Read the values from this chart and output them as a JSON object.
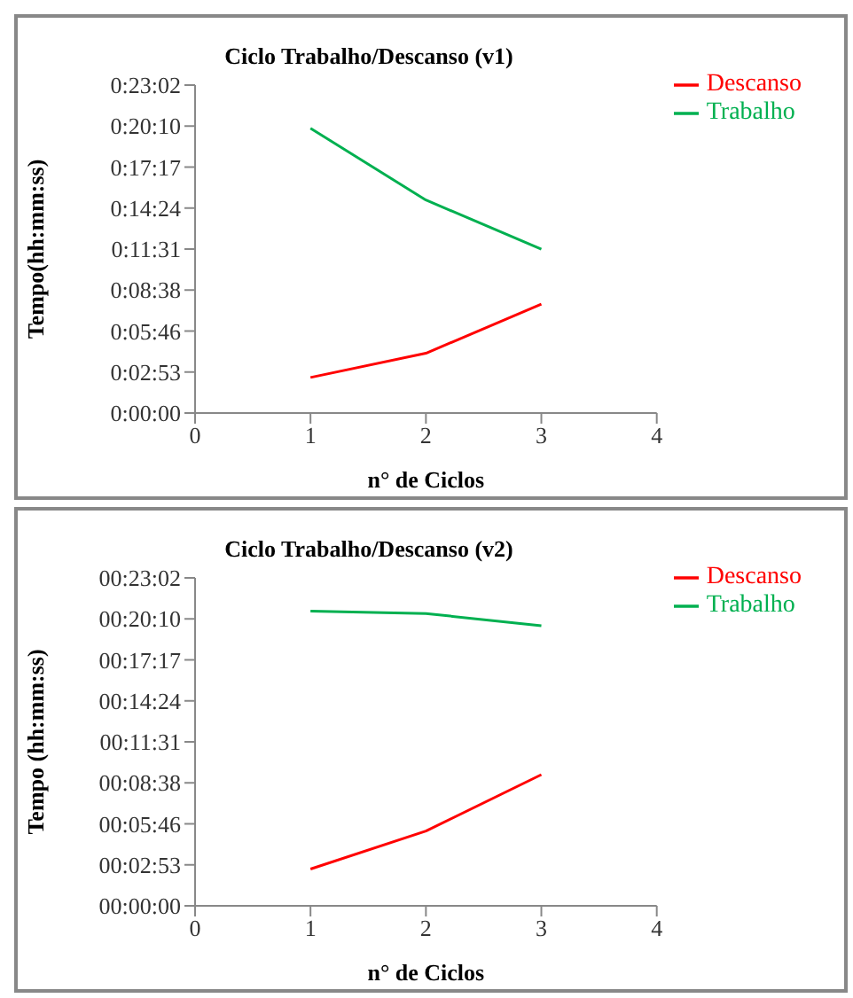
{
  "chart_data": [
    {
      "type": "line",
      "title": "Ciclo Trabalho/Descanso (v1)",
      "xlabel": "n° de Ciclos",
      "ylabel": "Tempo(hh:mm:ss)",
      "x": [
        1,
        2,
        3
      ],
      "series": [
        {
          "name": "Trabalho",
          "color": "#00b050",
          "values": [
            1200,
            898,
            691
          ]
        },
        {
          "name": "Descanso",
          "color": "#ff0000",
          "values": [
            150,
            252,
            459
          ]
        }
      ],
      "xlim": [
        0,
        4
      ],
      "xticks": [
        0,
        1,
        2,
        3,
        4
      ],
      "ylim": [
        0,
        1382.4
      ],
      "yticks": [
        {
          "value": 0,
          "label": "0:00:00"
        },
        {
          "value": 172.8,
          "label": "0:02:53"
        },
        {
          "value": 345.6,
          "label": "0:05:46"
        },
        {
          "value": 518.4,
          "label": "0:08:38"
        },
        {
          "value": 691.2,
          "label": "0:11:31"
        },
        {
          "value": 864,
          "label": "0:14:24"
        },
        {
          "value": 1036.8,
          "label": "0:17:17"
        },
        {
          "value": 1209.6,
          "label": "0:20:10"
        },
        {
          "value": 1382.4,
          "label": "0:23:02"
        }
      ],
      "grid": false,
      "legend": "right",
      "marker": "none",
      "line_style": "solid"
    },
    {
      "type": "line",
      "title": "Ciclo Trabalho/Descanso (v2)",
      "xlabel": "n° de Ciclos",
      "ylabel": "Tempo (hh:mm:ss)",
      "x": [
        1,
        2,
        3
      ],
      "series": [
        {
          "name": "Trabalho",
          "color": "#00b050",
          "values": [
            1242,
            1232,
            1181
          ]
        },
        {
          "name": "Descanso",
          "color": "#ff0000",
          "values": [
            155,
            315,
            553
          ]
        }
      ],
      "xlim": [
        0,
        4
      ],
      "xticks": [
        0,
        1,
        2,
        3,
        4
      ],
      "ylim": [
        0,
        1382.4
      ],
      "yticks": [
        {
          "value": 0,
          "label": "00:00:00"
        },
        {
          "value": 172.8,
          "label": "00:02:53"
        },
        {
          "value": 345.6,
          "label": "00:05:46"
        },
        {
          "value": 518.4,
          "label": "00:08:38"
        },
        {
          "value": 691.2,
          "label": "00:11:31"
        },
        {
          "value": 864,
          "label": "00:14:24"
        },
        {
          "value": 1036.8,
          "label": "00:17:17"
        },
        {
          "value": 1209.6,
          "label": "00:20:10"
        },
        {
          "value": 1382.4,
          "label": "00:23:02"
        }
      ],
      "grid": false,
      "legend": "right",
      "marker": "none",
      "line_style": "solid"
    }
  ]
}
